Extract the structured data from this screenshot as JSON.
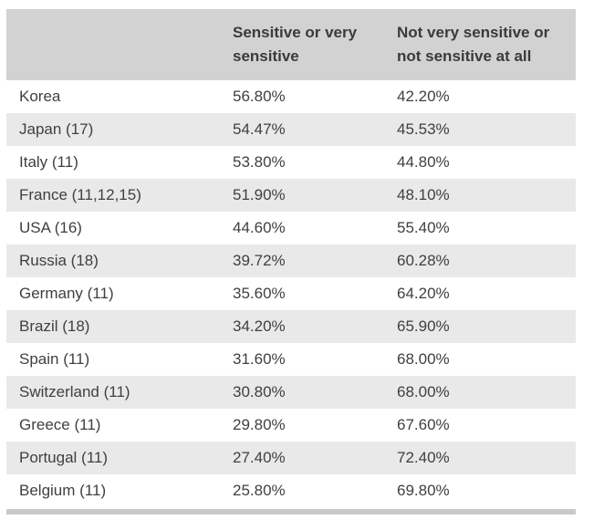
{
  "colors": {
    "header_bg": "#d2d2d2",
    "stripe_bg": "#e9e9e9",
    "bottom_bar_bg": "#c9c9c9",
    "header_text": "#3a3a3a",
    "row_text": "#404040",
    "page_bg": "#ffffff"
  },
  "table": {
    "header": {
      "col1": "",
      "col2": "Sensitive or very sensitive",
      "col3": "Not very sensitive or not sensitive at all"
    },
    "rows": [
      {
        "country": "Korea",
        "sensitive": "56.80%",
        "not_sensitive": "42.20%"
      },
      {
        "country": "Japan (17)",
        "sensitive": "54.47%",
        "not_sensitive": "45.53%"
      },
      {
        "country": "Italy (11)",
        "sensitive": "53.80%",
        "not_sensitive": "44.80%"
      },
      {
        "country": "France (11,12,15)",
        "sensitive": "51.90%",
        "not_sensitive": "48.10%"
      },
      {
        "country": "USA (16)",
        "sensitive": "44.60%",
        "not_sensitive": "55.40%"
      },
      {
        "country": "Russia (18)",
        "sensitive": "39.72%",
        "not_sensitive": "60.28%"
      },
      {
        "country": "Germany (11)",
        "sensitive": "35.60%",
        "not_sensitive": "64.20%"
      },
      {
        "country": "Brazil (18)",
        "sensitive": "34.20%",
        "not_sensitive": "65.90%"
      },
      {
        "country": "Spain (11)",
        "sensitive": "31.60%",
        "not_sensitive": "68.00%"
      },
      {
        "country": "Switzerland (11)",
        "sensitive": "30.80%",
        "not_sensitive": "68.00%"
      },
      {
        "country": "Greece (11)",
        "sensitive": "29.80%",
        "not_sensitive": "67.60%"
      },
      {
        "country": "Portugal (11)",
        "sensitive": "27.40%",
        "not_sensitive": "72.40%"
      },
      {
        "country": "Belgium (11)",
        "sensitive": "25.80%",
        "not_sensitive": "69.80%"
      }
    ]
  },
  "chart_data": {
    "type": "table",
    "title": "",
    "categories": [
      "Korea",
      "Japan (17)",
      "Italy (11)",
      "France (11,12,15)",
      "USA (16)",
      "Russia (18)",
      "Germany (11)",
      "Brazil (18)",
      "Spain (11)",
      "Switzerland (11)",
      "Greece (11)",
      "Portugal (11)",
      "Belgium (11)"
    ],
    "series": [
      {
        "name": "Sensitive or very sensitive",
        "values": [
          56.8,
          54.47,
          53.8,
          51.9,
          44.6,
          39.72,
          35.6,
          34.2,
          31.6,
          30.8,
          29.8,
          27.4,
          25.8
        ]
      },
      {
        "name": "Not very sensitive or not sensitive at all",
        "values": [
          42.2,
          45.53,
          44.8,
          48.1,
          55.4,
          60.28,
          64.2,
          65.9,
          68.0,
          68.0,
          67.6,
          72.4,
          69.8
        ]
      }
    ],
    "unit": "%"
  }
}
